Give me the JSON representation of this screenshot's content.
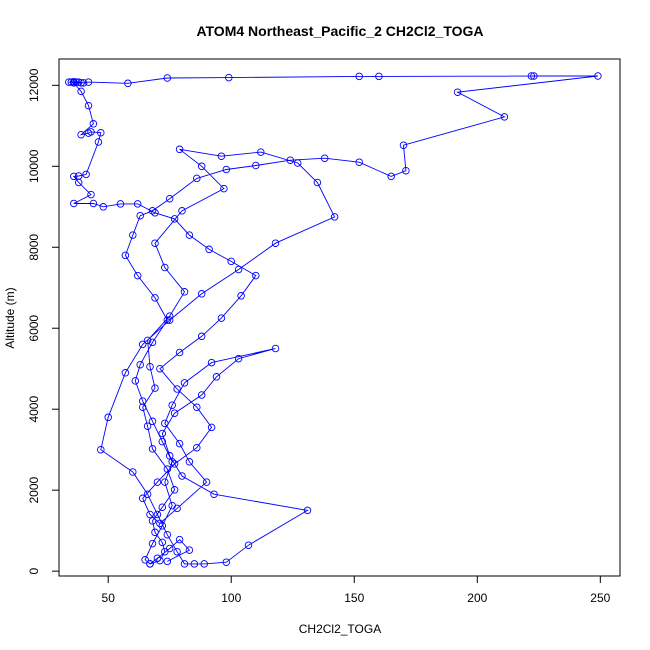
{
  "chart_data": {
    "type": "line",
    "title": "ATOM4 Northeast_Pacific_2 CH2Cl2_TOGA",
    "xlabel": "CH2Cl2_TOGA",
    "ylabel": "Altitude (m)",
    "xlim": [
      30,
      258
    ],
    "ylim": [
      -120,
      12650
    ],
    "x_ticks": [
      50,
      100,
      150,
      200,
      250
    ],
    "y_ticks": [
      0,
      2000,
      4000,
      6000,
      8000,
      10000,
      12000
    ],
    "grid": false,
    "markers": "open-circle",
    "colors": {
      "series": "#0000ff",
      "axes": "#000000"
    },
    "series": [
      {
        "points": [
          [
            67,
            180
          ],
          [
            71,
            260
          ],
          [
            73,
            480
          ],
          [
            72,
            710
          ],
          [
            69,
            960
          ],
          [
            68,
            1240
          ],
          [
            72,
            1580
          ],
          [
            77,
            2010
          ],
          [
            74,
            2520
          ],
          [
            68,
            3020
          ],
          [
            66,
            3580
          ],
          [
            64,
            4050
          ],
          [
            69,
            4520
          ],
          [
            67,
            5050
          ],
          [
            66,
            5700
          ],
          [
            75,
            6300
          ],
          [
            81,
            6900
          ],
          [
            73,
            7500
          ],
          [
            69,
            8100
          ],
          [
            80,
            8900
          ],
          [
            97,
            9450
          ],
          [
            88,
            10000
          ],
          [
            79,
            10420
          ],
          [
            96,
            10250
          ],
          [
            112,
            10350
          ],
          [
            127,
            10080
          ],
          [
            135,
            9600
          ],
          [
            142,
            8750
          ],
          [
            118,
            8100
          ],
          [
            103,
            7450
          ],
          [
            88,
            6850
          ],
          [
            75,
            6200
          ],
          [
            64,
            5600
          ],
          [
            57,
            4900
          ],
          [
            50,
            3800
          ],
          [
            47,
            3000
          ],
          [
            60,
            2450
          ],
          [
            66,
            1900
          ],
          [
            70,
            1400
          ],
          [
            74,
            900
          ],
          [
            78,
            480
          ],
          [
            81,
            180
          ],
          [
            85,
            180
          ],
          [
            89,
            180
          ],
          [
            98,
            220
          ],
          [
            107,
            640
          ],
          [
            131,
            1500
          ],
          [
            93,
            1900
          ],
          [
            80,
            2350
          ],
          [
            75,
            2850
          ],
          [
            72,
            3400
          ],
          [
            77,
            3900
          ],
          [
            88,
            4350
          ],
          [
            94,
            4800
          ],
          [
            103,
            5250
          ],
          [
            118,
            5500
          ],
          [
            92,
            5150
          ],
          [
            81,
            4650
          ],
          [
            76,
            4100
          ],
          [
            73,
            3650
          ],
          [
            79,
            3150
          ],
          [
            83,
            2700
          ],
          [
            90,
            2200
          ],
          [
            78,
            1550
          ],
          [
            71,
            1180
          ],
          [
            67,
            1400
          ],
          [
            64,
            1800
          ],
          [
            70,
            2200
          ],
          [
            77,
            2650
          ],
          [
            86,
            3050
          ],
          [
            92,
            3550
          ],
          [
            86,
            4050
          ],
          [
            78,
            4500
          ],
          [
            71,
            5000
          ],
          [
            79,
            5400
          ],
          [
            88,
            5800
          ],
          [
            96,
            6250
          ],
          [
            104,
            6800
          ],
          [
            110,
            7300
          ],
          [
            100,
            7650
          ],
          [
            91,
            7950
          ],
          [
            83,
            8300
          ],
          [
            77,
            8700
          ],
          [
            69,
            8850
          ],
          [
            62,
            9070
          ],
          [
            55,
            9070
          ],
          [
            48,
            9000
          ],
          [
            44,
            9080
          ],
          [
            36,
            9080
          ],
          [
            43,
            9300
          ],
          [
            38,
            9600
          ],
          [
            36,
            9750
          ],
          [
            38,
            9760
          ],
          [
            41,
            9800
          ],
          [
            46,
            10600
          ],
          [
            47,
            10830
          ],
          [
            43,
            10850
          ],
          [
            42,
            10820
          ],
          [
            39,
            10780
          ],
          [
            44,
            11050
          ],
          [
            42,
            11500
          ],
          [
            39,
            11850
          ],
          [
            36,
            12060
          ],
          [
            37,
            12080
          ],
          [
            39,
            12060
          ],
          [
            34,
            12080
          ],
          [
            35,
            12080
          ],
          [
            36,
            12090
          ],
          [
            38,
            12080
          ],
          [
            40,
            12060
          ],
          [
            42,
            12080
          ],
          [
            58,
            12050
          ],
          [
            74,
            12180
          ],
          [
            99,
            12190
          ],
          [
            152,
            12220
          ],
          [
            160,
            12220
          ],
          [
            223,
            12230
          ],
          [
            222,
            12230
          ],
          [
            249,
            12230
          ],
          [
            192,
            11830
          ],
          [
            211,
            11220
          ],
          [
            170,
            10520
          ],
          [
            171,
            9890
          ],
          [
            165,
            9750
          ],
          [
            152,
            10100
          ],
          [
            138,
            10200
          ],
          [
            124,
            10150
          ],
          [
            110,
            10020
          ],
          [
            98,
            9920
          ],
          [
            86,
            9700
          ],
          [
            75,
            9200
          ],
          [
            68,
            8900
          ],
          [
            63,
            8780
          ],
          [
            60,
            8300
          ],
          [
            57,
            7800
          ],
          [
            62,
            7300
          ],
          [
            69,
            6750
          ],
          [
            74,
            6200
          ],
          [
            68,
            5650
          ],
          [
            63,
            5100
          ],
          [
            61,
            4700
          ],
          [
            64,
            4200
          ],
          [
            68,
            3700
          ],
          [
            72,
            3200
          ],
          [
            76,
            2700
          ],
          [
            73,
            2200
          ],
          [
            76,
            1620
          ],
          [
            72,
            1120
          ],
          [
            68,
            680
          ],
          [
            65,
            280
          ],
          [
            67,
            180
          ],
          [
            70,
            320
          ],
          [
            75,
            560
          ],
          [
            79,
            780
          ],
          [
            83,
            520
          ],
          [
            74,
            240
          ]
        ]
      }
    ]
  }
}
